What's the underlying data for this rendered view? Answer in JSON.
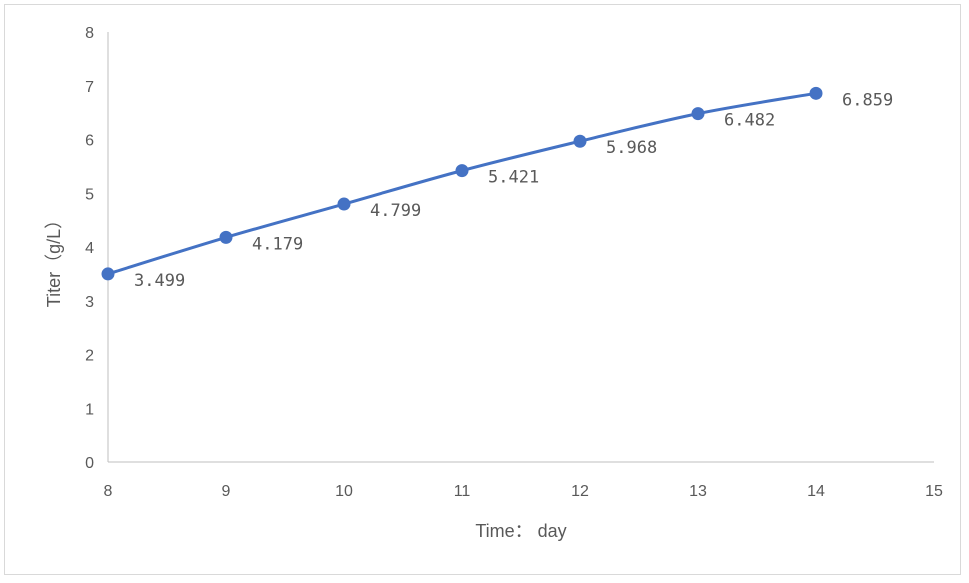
{
  "chart_data": {
    "type": "scatter",
    "title": "",
    "xlabel": "Time： day",
    "ylabel": "Titer（g/L）",
    "xlim": [
      8,
      15
    ],
    "ylim": [
      0,
      8
    ],
    "x_ticks": [
      "8",
      "9",
      "10",
      "11",
      "12",
      "13",
      "14",
      "15"
    ],
    "y_ticks": [
      "0",
      "1",
      "2",
      "3",
      "4",
      "5",
      "6",
      "7",
      "8"
    ],
    "grid": false,
    "legend": "none",
    "series": [
      {
        "color": "#4472c4",
        "line_style": "smooth",
        "x": [
          8,
          9,
          10,
          11,
          12,
          13,
          14
        ],
        "y": [
          3.499,
          4.179,
          4.799,
          5.421,
          5.968,
          6.482,
          6.859
        ],
        "labels": [
          "3.499",
          "4.179",
          "4.799",
          "5.421",
          "5.968",
          "6.482",
          "6.859"
        ]
      }
    ]
  }
}
